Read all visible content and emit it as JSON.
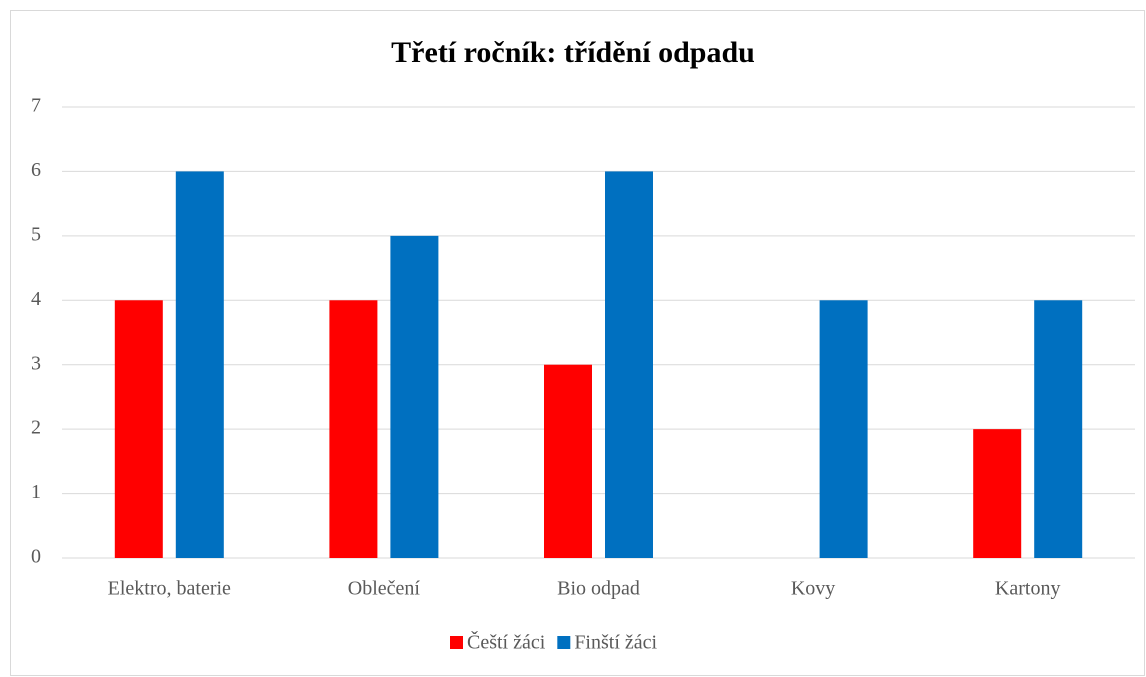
{
  "chart_data": {
    "type": "bar",
    "title": "Třetí ročník: třídění odpadu",
    "categories": [
      "Elektro, baterie",
      "Oblečení",
      "Bio odpad",
      "Kovy",
      "Kartony"
    ],
    "series": [
      {
        "name": "Čeští žáci",
        "color": "#ff0000",
        "values": [
          4,
          4,
          3,
          0,
          2
        ]
      },
      {
        "name": "Finští žáci",
        "color": "#0070c0",
        "values": [
          6,
          5,
          6,
          4,
          4
        ]
      }
    ],
    "ylim": [
      0,
      7
    ],
    "yticks": [
      0,
      1,
      2,
      3,
      4,
      5,
      6,
      7
    ],
    "grid": true,
    "legend": "bottom"
  }
}
